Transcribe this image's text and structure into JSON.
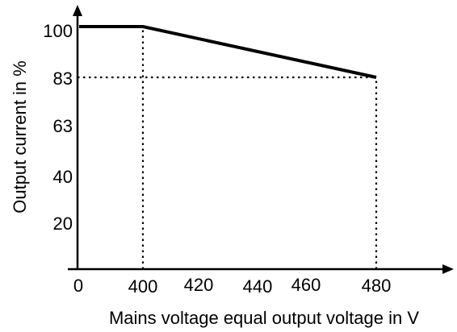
{
  "chart_data": {
    "type": "line",
    "title": "",
    "xlabel": "Mains voltage equal output voltage in V",
    "ylabel": "Output current in %",
    "x_ticks": [
      "0",
      "400",
      "420",
      "440",
      "460",
      "480"
    ],
    "y_ticks": [
      "20",
      "40",
      "63",
      "83",
      "100"
    ],
    "series": [
      {
        "x": [
          0,
          400,
          480
        ],
        "y": [
          100,
          100,
          83
        ]
      }
    ],
    "reference_lines": [
      {
        "type": "vertical",
        "x": 400,
        "y_to": 100
      },
      {
        "type": "vertical",
        "x": 480,
        "y_to": 83
      },
      {
        "type": "horizontal",
        "y": 83,
        "x_to": 480
      }
    ],
    "grid": false,
    "legend": "none",
    "line_color": "#000000"
  }
}
